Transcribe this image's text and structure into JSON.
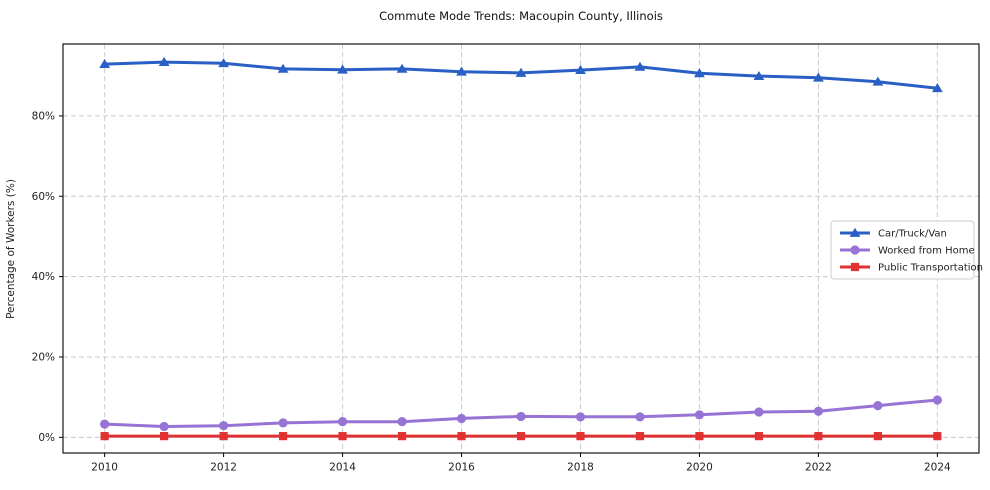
{
  "chart_data": {
    "type": "line",
    "title": "Commute Mode Trends: Macoupin County, Illinois",
    "xlabel": "",
    "ylabel": "Percentage of Workers (%)",
    "x": [
      2010,
      2011,
      2012,
      2013,
      2014,
      2015,
      2016,
      2017,
      2018,
      2019,
      2020,
      2021,
      2022,
      2023,
      2024
    ],
    "series": [
      {
        "name": "Car/Truck/Van",
        "color": "#2a5fc5",
        "marker": "triangle",
        "values": [
          92.9,
          93.4,
          93.1,
          91.7,
          91.5,
          91.7,
          91.0,
          90.7,
          91.4,
          92.2,
          90.6,
          89.9,
          89.5,
          88.5,
          86.9
        ]
      },
      {
        "name": "Worked from Home",
        "color": "#9673d4",
        "marker": "circle",
        "values": [
          3.3,
          2.7,
          2.9,
          3.6,
          3.9,
          3.9,
          4.7,
          5.2,
          5.1,
          5.1,
          5.6,
          6.3,
          6.5,
          7.9,
          9.3
        ]
      },
      {
        "name": "Public Transportation",
        "color": "#e03231",
        "marker": "square",
        "values": [
          0.3,
          0.3,
          0.3,
          0.3,
          0.3,
          0.3,
          0.3,
          0.3,
          0.3,
          0.3,
          0.3,
          0.3,
          0.3,
          0.3,
          0.3
        ]
      }
    ],
    "xlim": [
      2009.3,
      2024.7
    ],
    "ylim": [
      -3.9,
      97.9
    ],
    "x_ticks": [
      2010,
      2012,
      2014,
      2016,
      2018,
      2020,
      2022,
      2024
    ],
    "x_tick_labels": [
      "2010",
      "2012",
      "2014",
      "2016",
      "2018",
      "2020",
      "2022",
      "2024"
    ],
    "y_ticks": [
      0,
      20,
      40,
      60,
      80
    ],
    "y_tick_labels": [
      "0%",
      "20%",
      "40%",
      "60%",
      "80%"
    ],
    "grid": true,
    "grid_style": "dashed",
    "legend_position": "center-right",
    "colors": {
      "spine": "#000000",
      "grid": "#cccccc",
      "tick_text": "#222222",
      "legend_border": "#cccccc",
      "legend_bg": "#ffffff"
    }
  }
}
